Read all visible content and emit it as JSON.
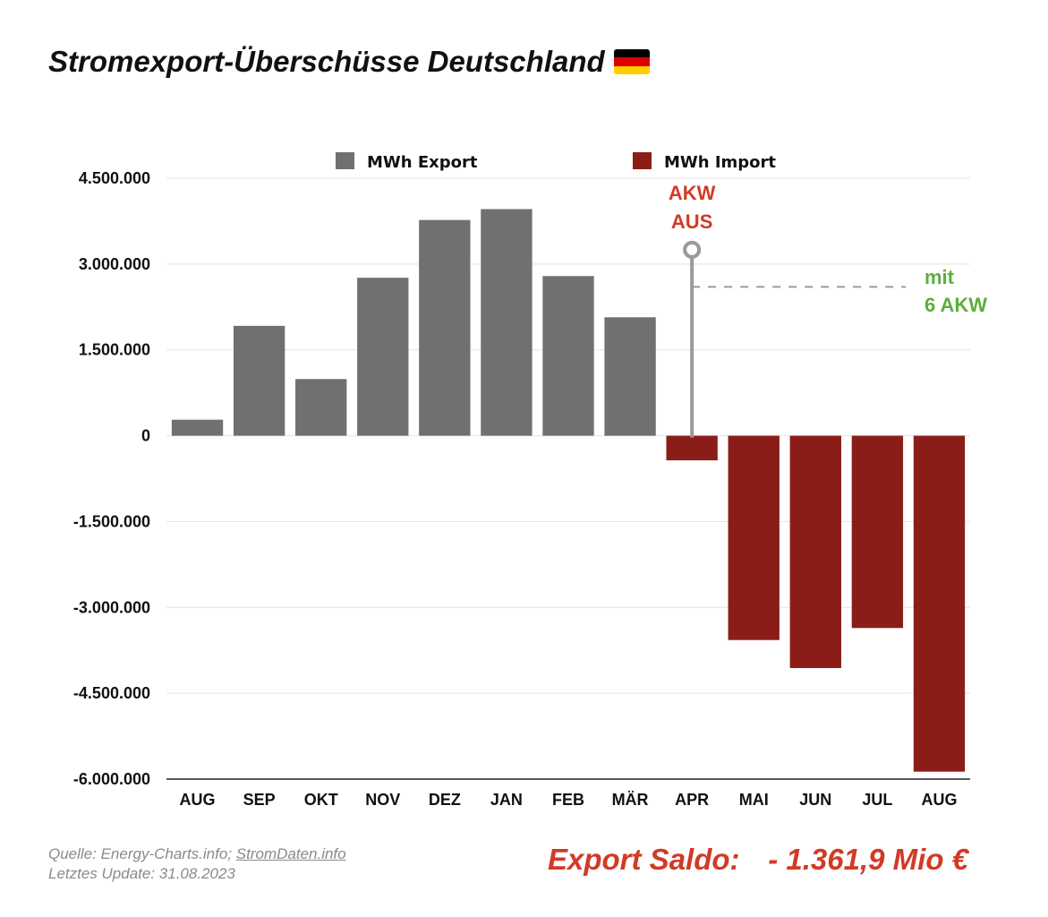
{
  "title": "Stromexport-Überschüsse Deutschland",
  "flag_icon": "german-flag",
  "colors": {
    "export": "#6f706f",
    "import": "#8b1d18",
    "accent_red": "#d23a26",
    "accent_green": "#5cae3c",
    "flag": [
      "#000000",
      "#dd0000",
      "#ffce00"
    ]
  },
  "chart_data": {
    "type": "bar",
    "categories": [
      "AUG",
      "SEP",
      "OKT",
      "NOV",
      "DEZ",
      "JAN",
      "FEB",
      "MÄR",
      "APR",
      "MAI",
      "JUN",
      "JUL",
      "AUG"
    ],
    "values": [
      280000,
      1920000,
      990000,
      2760000,
      3770000,
      3960000,
      2790000,
      2070000,
      -430000,
      -3570000,
      -4060000,
      -3360000,
      -5870000
    ],
    "series": [
      {
        "name": "MWh Export",
        "color": "#6f706f"
      },
      {
        "name": "MWh Import",
        "color": "#8b1d18"
      }
    ],
    "ylim": [
      -6000000,
      4500000
    ],
    "yticks": [
      4500000,
      3000000,
      1500000,
      0,
      -1500000,
      -3000000,
      -4500000,
      -6000000
    ],
    "ytick_labels": [
      "4.500.000",
      "3.000.000",
      "1.500.000",
      "0",
      "-1.500.000",
      "-3.000.000",
      "-4.500.000",
      "-6.000.000"
    ],
    "grid": true,
    "legend": "top",
    "annotations": {
      "akw_aus": {
        "lines": [
          "AKW",
          "AUS"
        ],
        "at_category": "APR",
        "marker_value": 3250000
      },
      "mit_akw": {
        "lines": [
          "mit",
          "6 AKW"
        ],
        "reference_value": 2600000
      }
    }
  },
  "footer": {
    "source_prefix": "Quelle: Energy-Charts.info; ",
    "source_link": "StromDaten.info",
    "update": "Letztes Update: 31.08.2023"
  },
  "saldo": {
    "label": "Export Saldo:",
    "value": "- 1.361,9 Mio €"
  }
}
